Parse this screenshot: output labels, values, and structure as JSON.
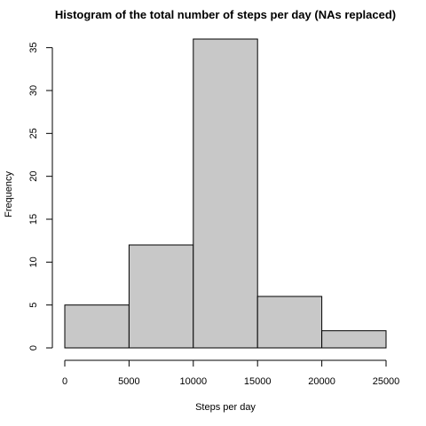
{
  "chart_data": {
    "type": "bar",
    "title": "Histogram of the total number of steps per day (NAs replaced)",
    "xlabel": "Steps per day",
    "ylabel": "Frequency",
    "bins": [
      {
        "start": 0,
        "end": 5000,
        "count": 5
      },
      {
        "start": 5000,
        "end": 10000,
        "count": 12
      },
      {
        "start": 10000,
        "end": 15000,
        "count": 36
      },
      {
        "start": 15000,
        "end": 20000,
        "count": 6
      },
      {
        "start": 20000,
        "end": 25000,
        "count": 2
      }
    ],
    "xlim": [
      0,
      25000
    ],
    "ylim": [
      0,
      36
    ],
    "x_ticks": [
      0,
      5000,
      10000,
      15000,
      20000,
      25000
    ],
    "y_ticks": [
      0,
      5,
      10,
      15,
      20,
      25,
      30,
      35
    ],
    "grid": false,
    "bar_color": "#c8c8c8",
    "bar_edge_color": "#000000"
  }
}
